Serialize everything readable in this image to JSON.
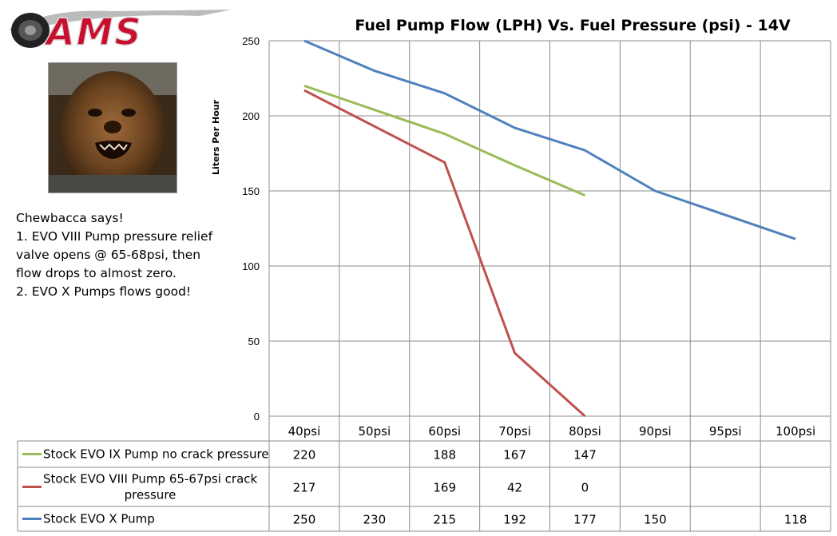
{
  "chart_data": {
    "type": "line",
    "title": "Fuel Pump Flow (LPH) Vs. Fuel Pressure (psi) - 14V",
    "xlabel": "",
    "ylabel": "Liters Per Hour",
    "ylim": [
      0,
      250
    ],
    "yticks": [
      0,
      50,
      100,
      150,
      200,
      250
    ],
    "categories": [
      "40psi",
      "50psi",
      "60psi",
      "70psi",
      "80psi",
      "90psi",
      "95psi",
      "100psi"
    ],
    "grid": true,
    "legend": "data-table-below",
    "series": [
      {
        "name": "Stock EVO IX Pump no crack pressure",
        "name_lines": [
          "Stock EVO IX Pump no crack pressure"
        ],
        "color": "#9bbb59",
        "values": [
          220,
          null,
          188,
          167,
          147,
          null,
          null,
          null
        ]
      },
      {
        "name": "Stock EVO VIII Pump 65-67psi crack pressure",
        "name_lines": [
          "Stock EVO VIII Pump 65-67psi crack",
          "pressure"
        ],
        "color": "#c0504d",
        "values": [
          217,
          null,
          169,
          42,
          0,
          null,
          null,
          null
        ]
      },
      {
        "name": "Stock EVO X Pump",
        "name_lines": [
          "Stock EVO X Pump"
        ],
        "color": "#4f81bd",
        "values": [
          250,
          230,
          215,
          192,
          177,
          150,
          null,
          118
        ]
      }
    ]
  },
  "logo": {
    "text": "AMS",
    "color": "#c8102e"
  },
  "sidebar": {
    "lines": [
      "Chewbacca says!",
      "1.  EVO VIII Pump pressure relief",
      "valve opens @ 65-68psi, then",
      "flow drops to almost zero.",
      "2.  EVO X Pumps flows good!"
    ]
  }
}
